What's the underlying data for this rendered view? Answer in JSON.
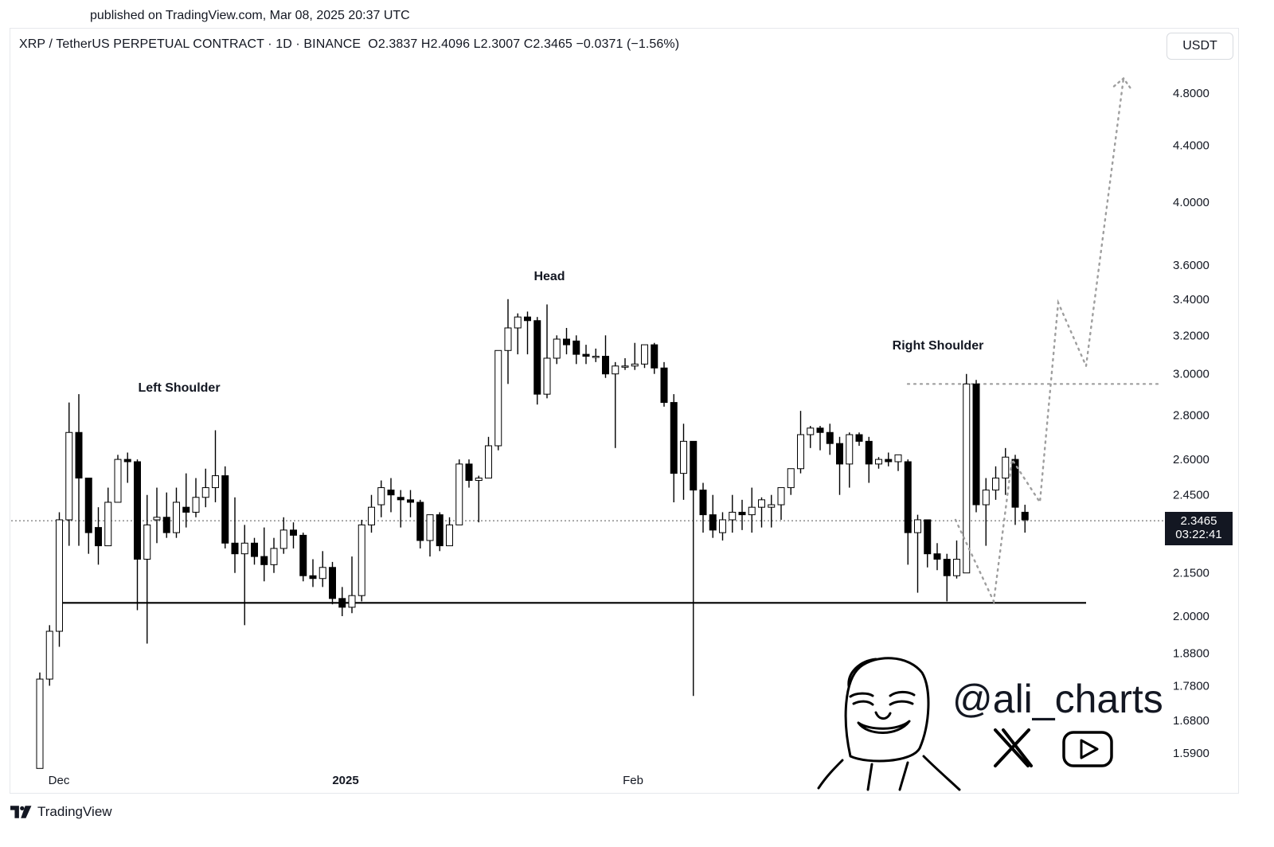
{
  "header": {
    "published": "published on TradingView.com, Mar 08, 2025 20:37 UTC"
  },
  "legend": {
    "symbol": "XRP / TetherUS PERPETUAL CONTRACT · 1D · BINANCE",
    "ohlc": "O2.3837  H2.4096  L2.3007  C2.3465  −0.0371 (−1.56%)"
  },
  "currency_button": "USDT",
  "last_price": {
    "value": "2.3465",
    "countdown": "03:22:41"
  },
  "footer": {
    "brand": "TradingView"
  },
  "watermark": {
    "handle": "@ali_charts",
    "x_icon": "x-logo-icon",
    "youtube_icon": "youtube-icon"
  },
  "colors": {
    "up_body": "#ffffff",
    "down_body": "#000000",
    "wick": "#000000",
    "projection": "#9e9e9e",
    "background": "#ffffff"
  },
  "chart_data": {
    "type": "candlestick",
    "scale": "log",
    "y_ticks": [
      "4.8000",
      "4.4000",
      "4.0000",
      "3.6000",
      "3.4000",
      "3.2000",
      "3.0000",
      "2.8000",
      "2.6000",
      "2.4500",
      "2.1500",
      "2.0000",
      "1.8800",
      "1.7800",
      "1.6800",
      "1.5900"
    ],
    "x_ticks": [
      {
        "label": "Dec",
        "bold": false
      },
      {
        "label": "2025",
        "bold": true
      },
      {
        "label": "Feb",
        "bold": false
      }
    ],
    "annotations": [
      "Left Shoulder",
      "Head",
      "Right Shoulder"
    ],
    "neckline": 2.045,
    "resistance": 2.95,
    "last_close": 2.3465,
    "candles": [
      [
        1.55,
        1.8,
        1.55,
        1.82
      ],
      [
        1.8,
        1.95,
        1.78,
        1.97
      ],
      [
        1.95,
        2.35,
        1.9,
        2.38
      ],
      [
        2.35,
        2.72,
        2.25,
        2.86
      ],
      [
        2.72,
        2.52,
        2.25,
        2.9
      ],
      [
        2.52,
        2.3,
        2.22,
        2.52
      ],
      [
        2.32,
        2.25,
        2.18,
        2.4
      ],
      [
        2.25,
        2.42,
        2.25,
        2.48
      ],
      [
        2.42,
        2.6,
        2.42,
        2.62
      ],
      [
        2.6,
        2.59,
        2.5,
        2.63
      ],
      [
        2.59,
        2.2,
        2.02,
        2.6
      ],
      [
        2.2,
        2.33,
        1.91,
        2.45
      ],
      [
        2.35,
        2.36,
        2.26,
        2.48
      ],
      [
        2.36,
        2.3,
        2.28,
        2.46
      ],
      [
        2.3,
        2.42,
        2.28,
        2.48
      ],
      [
        2.4,
        2.38,
        2.32,
        2.54
      ],
      [
        2.38,
        2.44,
        2.36,
        2.52
      ],
      [
        2.44,
        2.48,
        2.4,
        2.56
      ],
      [
        2.48,
        2.53,
        2.42,
        2.73
      ],
      [
        2.53,
        2.26,
        2.24,
        2.57
      ],
      [
        2.26,
        2.22,
        2.15,
        2.44
      ],
      [
        2.22,
        2.26,
        1.97,
        2.33
      ],
      [
        2.26,
        2.21,
        2.18,
        2.28
      ],
      [
        2.21,
        2.18,
        2.12,
        2.32
      ],
      [
        2.18,
        2.24,
        2.15,
        2.28
      ],
      [
        2.24,
        2.31,
        2.22,
        2.36
      ],
      [
        2.31,
        2.29,
        2.24,
        2.34
      ],
      [
        2.29,
        2.14,
        2.12,
        2.3
      ],
      [
        2.14,
        2.13,
        2.1,
        2.2
      ],
      [
        2.13,
        2.17,
        2.1,
        2.23
      ],
      [
        2.17,
        2.06,
        2.04,
        2.19
      ],
      [
        2.06,
        2.03,
        2.0,
        2.1
      ],
      [
        2.03,
        2.07,
        2.01,
        2.21
      ],
      [
        2.07,
        2.33,
        2.05,
        2.35
      ],
      [
        2.33,
        2.4,
        2.3,
        2.45
      ],
      [
        2.41,
        2.48,
        2.36,
        2.51
      ],
      [
        2.47,
        2.45,
        2.38,
        2.52
      ],
      [
        2.44,
        2.43,
        2.32,
        2.47
      ],
      [
        2.43,
        2.42,
        2.36,
        2.47
      ],
      [
        2.42,
        2.27,
        2.24,
        2.43
      ],
      [
        2.27,
        2.37,
        2.21,
        2.37
      ],
      [
        2.37,
        2.25,
        2.23,
        2.38
      ],
      [
        2.25,
        2.33,
        2.25,
        2.36
      ],
      [
        2.33,
        2.58,
        2.33,
        2.6
      ],
      [
        2.58,
        2.51,
        2.48,
        2.6
      ],
      [
        2.51,
        2.52,
        2.34,
        2.53
      ],
      [
        2.52,
        2.66,
        2.52,
        2.7
      ],
      [
        2.66,
        3.12,
        2.64,
        3.12
      ],
      [
        3.12,
        3.24,
        2.95,
        3.4
      ],
      [
        3.24,
        3.3,
        3.1,
        3.32
      ],
      [
        3.3,
        3.28,
        3.1,
        3.33
      ],
      [
        3.28,
        2.9,
        2.85,
        3.3
      ],
      [
        2.9,
        3.08,
        2.88,
        3.37
      ],
      [
        3.08,
        3.18,
        3.05,
        3.2
      ],
      [
        3.18,
        3.15,
        3.1,
        3.24
      ],
      [
        3.17,
        3.1,
        3.05,
        3.2
      ],
      [
        3.1,
        3.09,
        3.05,
        3.15
      ],
      [
        3.09,
        3.09,
        3.06,
        3.13
      ],
      [
        3.09,
        3.0,
        2.98,
        3.2
      ],
      [
        3.0,
        3.04,
        2.65,
        3.06
      ],
      [
        3.04,
        3.04,
        3.02,
        3.08
      ],
      [
        3.04,
        3.05,
        3.02,
        3.16
      ],
      [
        3.05,
        3.15,
        3.03,
        3.15
      ],
      [
        3.15,
        3.03,
        3.0,
        3.16
      ],
      [
        3.03,
        2.86,
        2.84,
        3.06
      ],
      [
        2.86,
        2.54,
        2.42,
        2.9
      ],
      [
        2.54,
        2.68,
        2.43,
        2.76
      ],
      [
        2.68,
        2.47,
        1.75,
        2.68
      ],
      [
        2.47,
        2.37,
        2.3,
        2.5
      ],
      [
        2.37,
        2.31,
        2.28,
        2.45
      ],
      [
        2.3,
        2.35,
        2.27,
        2.38
      ],
      [
        2.35,
        2.38,
        2.3,
        2.45
      ],
      [
        2.38,
        2.37,
        2.31,
        2.43
      ],
      [
        2.37,
        2.4,
        2.3,
        2.48
      ],
      [
        2.4,
        2.43,
        2.32,
        2.44
      ],
      [
        2.4,
        2.41,
        2.32,
        2.45
      ],
      [
        2.41,
        2.48,
        2.35,
        2.47
      ],
      [
        2.48,
        2.56,
        2.45,
        2.55
      ],
      [
        2.56,
        2.71,
        2.54,
        2.82
      ],
      [
        2.71,
        2.74,
        2.65,
        2.75
      ],
      [
        2.74,
        2.72,
        2.64,
        2.75
      ],
      [
        2.72,
        2.67,
        2.62,
        2.76
      ],
      [
        2.67,
        2.58,
        2.45,
        2.7
      ],
      [
        2.58,
        2.71,
        2.48,
        2.72
      ],
      [
        2.71,
        2.68,
        2.66,
        2.72
      ],
      [
        2.68,
        2.58,
        2.5,
        2.7
      ],
      [
        2.58,
        2.6,
        2.56,
        2.61
      ],
      [
        2.6,
        2.59,
        2.57,
        2.63
      ],
      [
        2.59,
        2.62,
        2.55,
        2.62
      ],
      [
        2.59,
        2.3,
        2.18,
        2.6
      ],
      [
        2.3,
        2.35,
        2.08,
        2.37
      ],
      [
        2.35,
        2.22,
        2.17,
        2.35
      ],
      [
        2.22,
        2.2,
        2.16,
        2.26
      ],
      [
        2.2,
        2.14,
        2.05,
        2.22
      ],
      [
        2.14,
        2.2,
        2.13,
        2.27
      ],
      [
        2.15,
        2.95,
        2.15,
        3.0
      ],
      [
        2.95,
        2.41,
        2.38,
        2.97
      ],
      [
        2.41,
        2.47,
        2.25,
        2.52
      ],
      [
        2.47,
        2.52,
        2.43,
        2.57
      ],
      [
        2.52,
        2.61,
        2.45,
        2.65
      ],
      [
        2.6,
        2.4,
        2.33,
        2.62
      ],
      [
        2.38,
        2.35,
        2.3,
        2.41
      ]
    ],
    "projection": [
      2.35,
      2.05,
      2.6,
      2.42,
      3.38,
      3.04,
      4.92
    ],
    "y_range": [
      1.55,
      5.0
    ]
  }
}
